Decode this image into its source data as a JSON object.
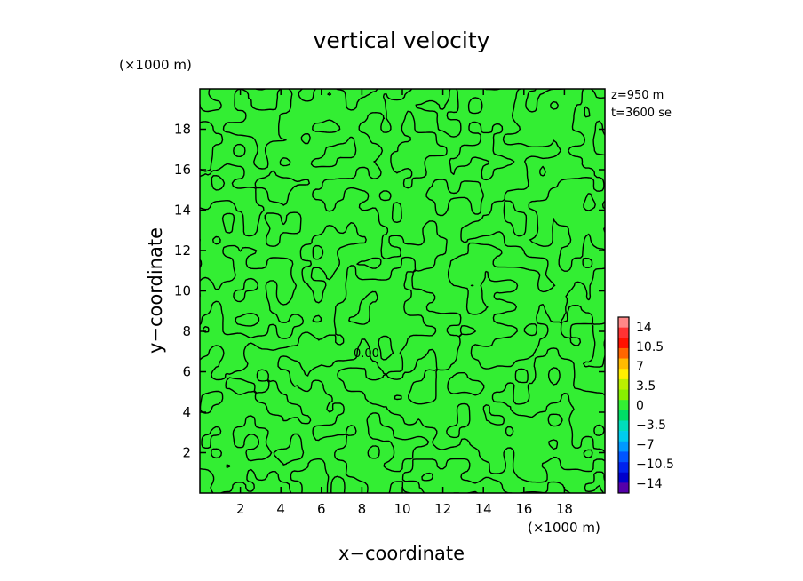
{
  "chart_data": {
    "type": "heatmap",
    "title": "vertical velocity",
    "xlabel": "x−coordinate",
    "ylabel": "y−coordinate",
    "x_unit": "(×1000 m)",
    "y_unit": "(×1000 m)",
    "xlim": [
      0,
      20
    ],
    "ylim": [
      0,
      20
    ],
    "x_ticks": [
      "2",
      "4",
      "6",
      "8",
      "10",
      "12",
      "14",
      "16",
      "18"
    ],
    "y_ticks": [
      "2",
      "4",
      "6",
      "8",
      "10",
      "12",
      "14",
      "16",
      "18"
    ],
    "annotations": [
      "z=950  m",
      "t=3600 se"
    ],
    "contour_label": "0.00",
    "field_value": 0,
    "field_color": "#33ee33",
    "colorbar": {
      "labels": [
        "14",
        "10.5",
        "7",
        "3.5",
        "0",
        "−3.5",
        "−7",
        "−10.5",
        "−14"
      ],
      "colors": [
        "#ff8888",
        "#ff3333",
        "#ff1100",
        "#ff6600",
        "#ffbb00",
        "#ffee00",
        "#bbee00",
        "#88ee00",
        "#33ee33",
        "#00dd66",
        "#00ddbb",
        "#00ccee",
        "#0099ff",
        "#0055ff",
        "#0022ee",
        "#0000cc",
        "#5500aa"
      ]
    }
  }
}
